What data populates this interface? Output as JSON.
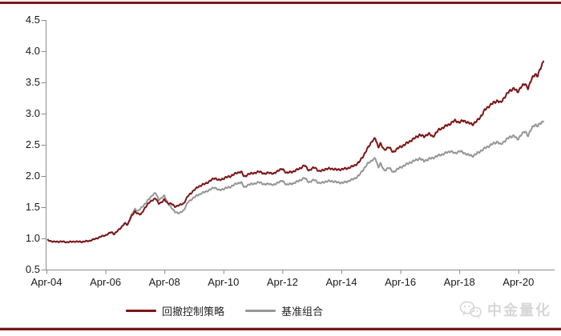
{
  "page": {
    "background": "#ffffff",
    "top_rule_color": "#7c1719",
    "bottom_rule_color": "#7c1719"
  },
  "watermark": {
    "label": "中金量化",
    "icon": "wechat-icon",
    "color": "#d7d7d7"
  },
  "chart_data": {
    "type": "line",
    "title": "",
    "xlabel": "",
    "ylabel": "",
    "grid": false,
    "x_range": [
      2004.25,
      2021.2
    ],
    "y_range": [
      0.5,
      4.5
    ],
    "x_tick_labels": [
      "Apr-04",
      "Apr-06",
      "Apr-08",
      "Apr-10",
      "Apr-12",
      "Apr-14",
      "Apr-16",
      "Apr-18",
      "Apr-20"
    ],
    "x_tick_years": [
      2004.25,
      2006.25,
      2008.25,
      2010.25,
      2012.25,
      2014.25,
      2016.25,
      2018.25,
      2020.25
    ],
    "y_tick_labels": [
      "4.5",
      "4.0",
      "3.5",
      "3.0",
      "2.5",
      "2.0",
      "1.5",
      "1.0",
      "0.5"
    ],
    "y_tick_values": [
      4.5,
      4.0,
      3.5,
      3.0,
      2.5,
      2.0,
      1.5,
      1.0,
      0.5
    ],
    "legend": {
      "position": "bottom-center",
      "items": [
        {
          "label": "回撤控制策略",
          "color": "#7c1719"
        },
        {
          "label": "基准组合",
          "color": "#979797"
        }
      ]
    },
    "x": [
      2004.3,
      2004.5,
      2004.75,
      2004.95,
      2005.2,
      2005.45,
      2005.7,
      2005.95,
      2006.1,
      2006.25,
      2006.45,
      2006.55,
      2006.75,
      2006.9,
      2007.0,
      2007.1,
      2007.25,
      2007.35,
      2007.45,
      2007.6,
      2007.75,
      2007.85,
      2007.95,
      2008.05,
      2008.15,
      2008.25,
      2008.35,
      2008.5,
      2008.6,
      2008.75,
      2008.9,
      2009.05,
      2009.2,
      2009.4,
      2009.6,
      2009.8,
      2009.95,
      2010.1,
      2010.3,
      2010.5,
      2010.7,
      2010.85,
      2010.95,
      2011.1,
      2011.3,
      2011.5,
      2011.65,
      2011.8,
      2011.95,
      2012.1,
      2012.25,
      2012.4,
      2012.6,
      2012.8,
      2013.0,
      2013.15,
      2013.35,
      2013.5,
      2013.7,
      2013.9,
      2014.1,
      2014.3,
      2014.5,
      2014.7,
      2014.85,
      2015.0,
      2015.15,
      2015.3,
      2015.4,
      2015.5,
      2015.57,
      2015.7,
      2015.85,
      2016.0,
      2016.15,
      2016.35,
      2016.55,
      2016.75,
      2016.9,
      2017.05,
      2017.2,
      2017.35,
      2017.55,
      2017.75,
      2017.95,
      2018.1,
      2018.25,
      2018.4,
      2018.55,
      2018.7,
      2018.85,
      2019.0,
      2019.1,
      2019.25,
      2019.4,
      2019.55,
      2019.65,
      2019.8,
      2019.95,
      2020.1,
      2020.22,
      2020.35,
      2020.48,
      2020.58,
      2020.7,
      2020.82,
      2020.9,
      2021.0,
      2021.05,
      2021.1
    ],
    "series": [
      {
        "name": "回撤控制策略",
        "color": "#7c1719",
        "values": [
          0.97,
          0.945,
          0.95,
          0.94,
          0.95,
          0.945,
          0.96,
          1.0,
          1.03,
          1.05,
          1.1,
          1.07,
          1.16,
          1.24,
          1.22,
          1.33,
          1.43,
          1.4,
          1.38,
          1.5,
          1.58,
          1.62,
          1.64,
          1.56,
          1.58,
          1.62,
          1.57,
          1.55,
          1.51,
          1.53,
          1.56,
          1.68,
          1.75,
          1.83,
          1.87,
          1.92,
          1.97,
          1.93,
          1.97,
          2.0,
          2.05,
          2.07,
          1.99,
          2.03,
          2.05,
          2.07,
          2.03,
          2.06,
          2.03,
          2.09,
          2.11,
          2.05,
          2.07,
          2.11,
          2.17,
          2.09,
          2.14,
          2.07,
          2.11,
          2.12,
          2.1,
          2.11,
          2.13,
          2.17,
          2.22,
          2.33,
          2.45,
          2.57,
          2.6,
          2.46,
          2.53,
          2.41,
          2.47,
          2.38,
          2.44,
          2.49,
          2.55,
          2.61,
          2.66,
          2.63,
          2.68,
          2.63,
          2.74,
          2.79,
          2.84,
          2.89,
          2.86,
          2.89,
          2.85,
          2.83,
          2.88,
          2.97,
          3.05,
          3.12,
          3.17,
          3.21,
          3.17,
          3.28,
          3.36,
          3.41,
          3.34,
          3.44,
          3.47,
          3.41,
          3.55,
          3.64,
          3.6,
          3.72,
          3.78,
          3.85
        ]
      },
      {
        "name": "基准组合",
        "color": "#979797",
        "values": [
          0.97,
          0.945,
          0.95,
          0.94,
          0.95,
          0.945,
          0.96,
          1.0,
          1.03,
          1.05,
          1.1,
          1.07,
          1.16,
          1.24,
          1.22,
          1.35,
          1.47,
          1.44,
          1.48,
          1.56,
          1.64,
          1.7,
          1.73,
          1.62,
          1.65,
          1.68,
          1.58,
          1.48,
          1.43,
          1.4,
          1.45,
          1.58,
          1.64,
          1.7,
          1.74,
          1.78,
          1.82,
          1.77,
          1.8,
          1.83,
          1.88,
          1.9,
          1.82,
          1.86,
          1.88,
          1.9,
          1.86,
          1.88,
          1.85,
          1.9,
          1.92,
          1.86,
          1.88,
          1.92,
          1.97,
          1.9,
          1.94,
          1.88,
          1.91,
          1.92,
          1.9,
          1.89,
          1.92,
          1.96,
          2.01,
          2.11,
          2.2,
          2.26,
          2.28,
          2.14,
          2.21,
          2.08,
          2.14,
          2.06,
          2.11,
          2.16,
          2.21,
          2.25,
          2.28,
          2.24,
          2.27,
          2.29,
          2.33,
          2.36,
          2.4,
          2.36,
          2.4,
          2.37,
          2.34,
          2.32,
          2.36,
          2.41,
          2.44,
          2.48,
          2.52,
          2.55,
          2.5,
          2.57,
          2.62,
          2.65,
          2.58,
          2.67,
          2.71,
          2.65,
          2.76,
          2.83,
          2.8,
          2.84,
          2.86,
          2.88
        ]
      }
    ]
  }
}
